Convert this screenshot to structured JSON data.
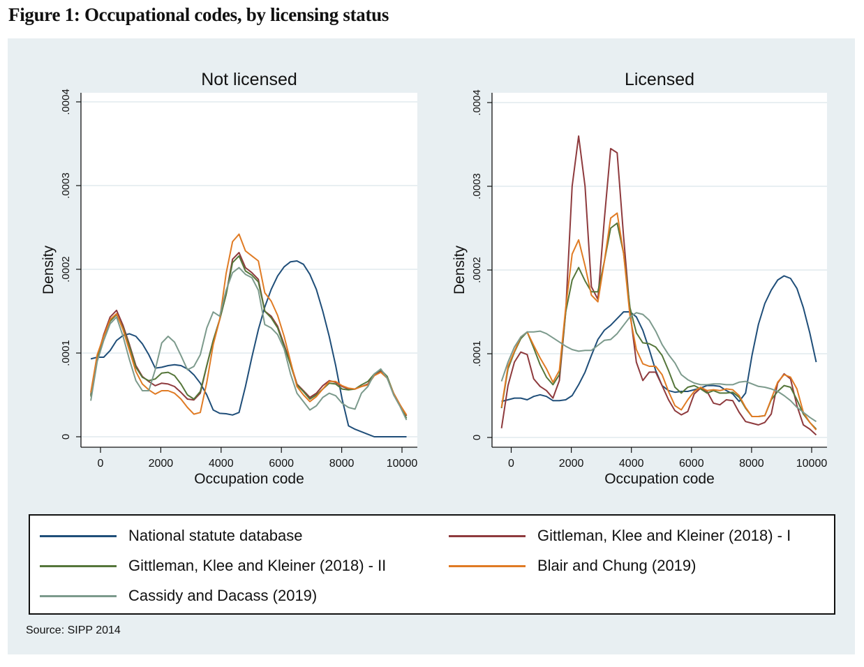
{
  "figure": {
    "title": "Figure 1: Occupational codes, by licensing status",
    "source": "Source: SIPP 2014",
    "background_color": "#e8eff2"
  },
  "legend": {
    "items": [
      {
        "label": "National statute database",
        "color": "#1f4e79"
      },
      {
        "label": "Gittleman, Klee and Kleiner (2018) - I",
        "color": "#8e3a3d"
      },
      {
        "label": "Gittleman, Klee and Kleiner (2018) - II",
        "color": "#55763a"
      },
      {
        "label": "Blair and Chung (2019)",
        "color": "#e07b24"
      },
      {
        "label": "Cassidy and Dacass (2019)",
        "color": "#7c9a8c"
      }
    ]
  },
  "chart_data": [
    {
      "type": "line",
      "title": "Not licensed",
      "xlabel": "Occupation code",
      "ylabel": "Density",
      "xlim": [
        -500,
        10500
      ],
      "ylim": [
        0,
        0.0004
      ],
      "y_multiplier": 0.0001,
      "xticks": [
        0,
        2000,
        4000,
        6000,
        8000,
        10000
      ],
      "xtick_labels": [
        "0",
        "2000",
        "4000",
        "6000",
        "8000",
        "10000"
      ],
      "yticks": [
        0,
        0.0001,
        0.0002,
        0.0003,
        0.0004
      ],
      "ytick_labels": [
        "0",
        ".0001",
        ".0002",
        ".0003",
        ".0004"
      ],
      "grid": true,
      "x": [
        -322,
        -108,
        106,
        319,
        533,
        747,
        961,
        1174,
        1388,
        1602,
        1815,
        2029,
        2243,
        2457,
        2670,
        2884,
        3098,
        3311,
        3525,
        3739,
        3953,
        4166,
        4380,
        4594,
        4808,
        5021,
        5235,
        5449,
        5662,
        5876,
        6090,
        6304,
        6517,
        6731,
        6945,
        7159,
        7372,
        7586,
        7800,
        8013,
        8227,
        8441,
        8654,
        8868,
        9082,
        9296,
        9509,
        9723,
        9937,
        10150
      ],
      "series": [
        {
          "name": "National statute database",
          "values": [
            0.93,
            0.95,
            0.95,
            1.03,
            1.15,
            1.21,
            1.23,
            1.2,
            1.11,
            0.98,
            0.82,
            0.83,
            0.85,
            0.86,
            0.85,
            0.81,
            0.74,
            0.64,
            0.5,
            0.32,
            0.28,
            0.275,
            0.26,
            0.29,
            0.6,
            0.95,
            1.28,
            1.55,
            1.76,
            1.92,
            2.03,
            2.09,
            2.1,
            2.06,
            1.94,
            1.76,
            1.5,
            1.2,
            0.85,
            0.45,
            0.13,
            0.09,
            0.06,
            0.03,
            0.0,
            0.0,
            0.0,
            0.0,
            0.0,
            0.0
          ]
        },
        {
          "name": "Gittleman, Klee and Kleiner (2018) - I",
          "values": [
            0.5,
            0.95,
            1.22,
            1.43,
            1.51,
            1.33,
            1.1,
            0.85,
            0.72,
            0.66,
            0.61,
            0.64,
            0.63,
            0.6,
            0.53,
            0.45,
            0.44,
            0.52,
            0.85,
            1.15,
            1.4,
            1.7,
            2.12,
            2.2,
            2.02,
            1.96,
            1.88,
            1.5,
            1.44,
            1.32,
            1.1,
            0.88,
            0.63,
            0.55,
            0.47,
            0.52,
            0.61,
            0.67,
            0.65,
            0.6,
            0.57,
            0.57,
            0.6,
            0.63,
            0.74,
            0.78,
            0.7,
            0.52,
            0.38,
            0.25
          ]
        },
        {
          "name": "Gittleman, Klee and Kleiner (2018) - II",
          "values": [
            0.48,
            0.93,
            1.2,
            1.38,
            1.46,
            1.3,
            1.08,
            0.83,
            0.71,
            0.67,
            0.69,
            0.76,
            0.77,
            0.73,
            0.63,
            0.5,
            0.45,
            0.54,
            0.85,
            1.15,
            1.4,
            1.7,
            2.08,
            2.16,
            1.98,
            1.93,
            1.85,
            1.5,
            1.42,
            1.3,
            1.08,
            0.86,
            0.62,
            0.54,
            0.45,
            0.5,
            0.57,
            0.64,
            0.63,
            0.57,
            0.56,
            0.57,
            0.62,
            0.66,
            0.75,
            0.8,
            0.72,
            0.52,
            0.37,
            0.22
          ]
        },
        {
          "name": "Blair and Chung (2019)",
          "values": [
            0.53,
            0.98,
            1.2,
            1.4,
            1.47,
            1.28,
            1.03,
            0.78,
            0.63,
            0.56,
            0.51,
            0.55,
            0.55,
            0.52,
            0.45,
            0.35,
            0.27,
            0.29,
            0.65,
            1.1,
            1.4,
            1.95,
            2.33,
            2.42,
            2.22,
            2.16,
            2.1,
            1.72,
            1.62,
            1.45,
            1.2,
            0.9,
            0.6,
            0.5,
            0.42,
            0.48,
            0.57,
            0.66,
            0.66,
            0.61,
            0.58,
            0.57,
            0.6,
            0.62,
            0.73,
            0.77,
            0.7,
            0.52,
            0.38,
            0.26
          ]
        },
        {
          "name": "Cassidy and Dacass (2019)",
          "values": [
            0.43,
            0.9,
            1.15,
            1.35,
            1.43,
            1.2,
            0.92,
            0.67,
            0.55,
            0.55,
            0.8,
            1.12,
            1.2,
            1.13,
            0.97,
            0.8,
            0.84,
            0.98,
            1.3,
            1.49,
            1.44,
            1.75,
            1.96,
            2.02,
            1.94,
            1.9,
            1.75,
            1.34,
            1.3,
            1.22,
            1.05,
            0.75,
            0.52,
            0.42,
            0.32,
            0.37,
            0.47,
            0.52,
            0.49,
            0.4,
            0.35,
            0.33,
            0.52,
            0.6,
            0.75,
            0.81,
            0.7,
            0.5,
            0.36,
            0.2
          ]
        }
      ]
    },
    {
      "type": "line",
      "title": "Licensed",
      "xlabel": "Occupation code",
      "ylabel": "Density",
      "xlim": [
        -500,
        10500
      ],
      "ylim": [
        0,
        0.0004
      ],
      "y_multiplier": 0.0001,
      "xticks": [
        0,
        2000,
        4000,
        6000,
        8000,
        10000
      ],
      "xtick_labels": [
        "0",
        "2000",
        "4000",
        "6000",
        "8000",
        "10000"
      ],
      "yticks": [
        0,
        0.0001,
        0.0002,
        0.0003,
        0.0004
      ],
      "ytick_labels": [
        "0",
        ".0001",
        ".0002",
        ".0003",
        ".0004"
      ],
      "grid": true,
      "x": [
        -322,
        -108,
        106,
        319,
        533,
        747,
        961,
        1174,
        1388,
        1602,
        1815,
        2029,
        2243,
        2457,
        2670,
        2884,
        3098,
        3311,
        3525,
        3739,
        3953,
        4166,
        4380,
        4594,
        4808,
        5021,
        5235,
        5449,
        5662,
        5876,
        6090,
        6304,
        6517,
        6731,
        6945,
        7159,
        7372,
        7586,
        7800,
        8013,
        8227,
        8441,
        8654,
        8868,
        9082,
        9296,
        9509,
        9723,
        9937,
        10150
      ],
      "series": [
        {
          "name": "National statute database",
          "values": [
            0.43,
            0.45,
            0.47,
            0.47,
            0.45,
            0.49,
            0.51,
            0.49,
            0.44,
            0.44,
            0.45,
            0.5,
            0.63,
            0.78,
            0.98,
            1.17,
            1.28,
            1.34,
            1.42,
            1.5,
            1.5,
            1.44,
            1.28,
            1.05,
            0.8,
            0.62,
            0.56,
            0.54,
            0.55,
            0.55,
            0.57,
            0.59,
            0.62,
            0.62,
            0.61,
            0.56,
            0.52,
            0.43,
            0.53,
            0.98,
            1.35,
            1.6,
            1.76,
            1.88,
            1.93,
            1.9,
            1.78,
            1.55,
            1.25,
            0.9
          ]
        },
        {
          "name": "Gittleman, Klee and Kleiner (2018) - I",
          "values": [
            0.11,
            0.62,
            0.9,
            1.02,
            0.99,
            0.7,
            0.61,
            0.56,
            0.47,
            0.68,
            1.5,
            3.0,
            3.6,
            3.0,
            1.8,
            1.65,
            2.6,
            3.45,
            3.4,
            2.4,
            1.5,
            0.9,
            0.68,
            0.78,
            0.78,
            0.62,
            0.45,
            0.32,
            0.27,
            0.31,
            0.52,
            0.59,
            0.55,
            0.41,
            0.39,
            0.45,
            0.44,
            0.3,
            0.19,
            0.17,
            0.15,
            0.18,
            0.28,
            0.65,
            0.76,
            0.7,
            0.38,
            0.15,
            0.1,
            0.03
          ]
        },
        {
          "name": "Gittleman, Klee and Kleiner (2018) - II",
          "values": [
            0.35,
            0.82,
            1.02,
            1.18,
            1.26,
            1.07,
            0.87,
            0.72,
            0.63,
            0.75,
            1.5,
            1.88,
            2.03,
            1.87,
            1.74,
            1.74,
            2.1,
            2.5,
            2.56,
            2.2,
            1.55,
            1.25,
            1.13,
            1.12,
            1.08,
            0.98,
            0.8,
            0.6,
            0.53,
            0.6,
            0.62,
            0.58,
            0.53,
            0.56,
            0.53,
            0.53,
            0.54,
            0.48,
            0.35,
            0.25,
            0.25,
            0.26,
            0.45,
            0.55,
            0.62,
            0.6,
            0.45,
            0.28,
            0.18,
            0.1
          ]
        },
        {
          "name": "Blair and Chung (2019)",
          "values": [
            0.36,
            0.85,
            1.03,
            1.2,
            1.26,
            1.1,
            0.95,
            0.82,
            0.66,
            0.8,
            1.55,
            2.19,
            2.36,
            2.05,
            1.7,
            1.62,
            2.1,
            2.62,
            2.68,
            2.2,
            1.45,
            1.05,
            0.88,
            0.85,
            0.85,
            0.75,
            0.55,
            0.38,
            0.33,
            0.45,
            0.55,
            0.6,
            0.56,
            0.57,
            0.56,
            0.58,
            0.57,
            0.5,
            0.36,
            0.25,
            0.25,
            0.26,
            0.46,
            0.66,
            0.75,
            0.72,
            0.58,
            0.3,
            0.18,
            0.09
          ]
        },
        {
          "name": "Cassidy and Dacass (2019)",
          "values": [
            0.67,
            0.9,
            1.08,
            1.2,
            1.26,
            1.26,
            1.27,
            1.24,
            1.19,
            1.14,
            1.09,
            1.05,
            1.03,
            1.04,
            1.04,
            1.1,
            1.16,
            1.17,
            1.24,
            1.34,
            1.44,
            1.49,
            1.47,
            1.4,
            1.27,
            1.11,
            0.99,
            0.89,
            0.75,
            0.69,
            0.65,
            0.63,
            0.63,
            0.64,
            0.64,
            0.63,
            0.63,
            0.66,
            0.67,
            0.64,
            0.61,
            0.6,
            0.58,
            0.55,
            0.5,
            0.44,
            0.36,
            0.3,
            0.24,
            0.19
          ]
        }
      ]
    }
  ]
}
